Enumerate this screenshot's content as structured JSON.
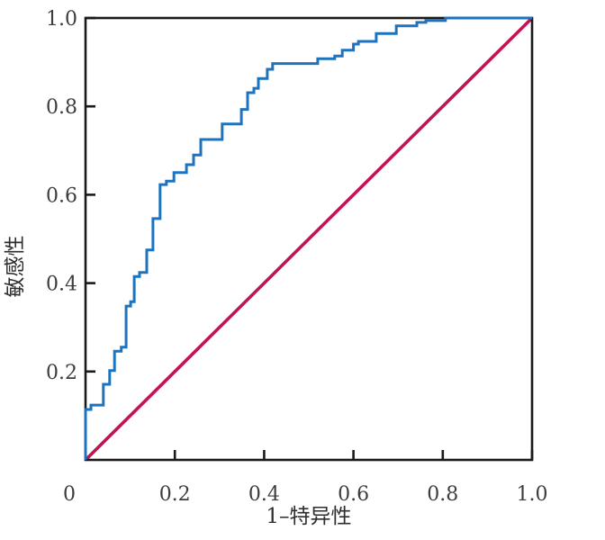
{
  "figure": {
    "background": "#ffffff",
    "axis_color": "#1a1a1a",
    "text_color": "#3d3d3d"
  },
  "chart_data": {
    "type": "line",
    "subtype": "roc-curve",
    "title": "",
    "xlabel": "1–特异性",
    "ylabel": "敏感性",
    "xlim": [
      0,
      1
    ],
    "ylim": [
      0,
      1
    ],
    "grid": false,
    "legend_position": "none",
    "x_axis": {
      "ticks": [
        {
          "label": "0",
          "value": 0,
          "dx": -18
        },
        {
          "label": "0.2",
          "value": 0.2,
          "dx": 0
        },
        {
          "label": "0.4",
          "value": 0.4,
          "dx": 0
        },
        {
          "label": "0.6",
          "value": 0.6,
          "dx": 0
        },
        {
          "label": "0.8",
          "value": 0.8,
          "dx": 0
        },
        {
          "label": "1.0",
          "value": 1,
          "dx": 0
        }
      ]
    },
    "y_axis": {
      "ticks": [
        {
          "label": "0.2",
          "value": 0.2
        },
        {
          "label": "0.4",
          "value": 0.4
        },
        {
          "label": "0.6",
          "value": 0.6
        },
        {
          "label": "0.8",
          "value": 0.8
        },
        {
          "label": "1.0",
          "value": 1
        }
      ]
    },
    "series": [
      {
        "name": "ROC curve",
        "kind": "step",
        "color": "#1d73bd",
        "stroke_width": 3,
        "points": [
          [
            0,
            0
          ],
          [
            0,
            0.114
          ],
          [
            0.012,
            0.114
          ],
          [
            0.012,
            0.124
          ],
          [
            0.04,
            0.124
          ],
          [
            0.04,
            0.171
          ],
          [
            0.054,
            0.171
          ],
          [
            0.054,
            0.202
          ],
          [
            0.065,
            0.202
          ],
          [
            0.065,
            0.246
          ],
          [
            0.08,
            0.246
          ],
          [
            0.08,
            0.255
          ],
          [
            0.091,
            0.255
          ],
          [
            0.091,
            0.348
          ],
          [
            0.101,
            0.348
          ],
          [
            0.101,
            0.358
          ],
          [
            0.109,
            0.358
          ],
          [
            0.109,
            0.415
          ],
          [
            0.121,
            0.415
          ],
          [
            0.121,
            0.424
          ],
          [
            0.137,
            0.424
          ],
          [
            0.137,
            0.475
          ],
          [
            0.151,
            0.475
          ],
          [
            0.151,
            0.546
          ],
          [
            0.167,
            0.546
          ],
          [
            0.167,
            0.623
          ],
          [
            0.181,
            0.623
          ],
          [
            0.181,
            0.631
          ],
          [
            0.198,
            0.631
          ],
          [
            0.198,
            0.65
          ],
          [
            0.226,
            0.65
          ],
          [
            0.226,
            0.668
          ],
          [
            0.242,
            0.668
          ],
          [
            0.242,
            0.69
          ],
          [
            0.258,
            0.69
          ],
          [
            0.258,
            0.725
          ],
          [
            0.306,
            0.725
          ],
          [
            0.306,
            0.76
          ],
          [
            0.349,
            0.76
          ],
          [
            0.349,
            0.793
          ],
          [
            0.363,
            0.793
          ],
          [
            0.363,
            0.831
          ],
          [
            0.377,
            0.831
          ],
          [
            0.377,
            0.841
          ],
          [
            0.387,
            0.841
          ],
          [
            0.387,
            0.863
          ],
          [
            0.407,
            0.863
          ],
          [
            0.407,
            0.884
          ],
          [
            0.419,
            0.884
          ],
          [
            0.419,
            0.897
          ],
          [
            0.52,
            0.897
          ],
          [
            0.52,
            0.908
          ],
          [
            0.558,
            0.908
          ],
          [
            0.558,
            0.914
          ],
          [
            0.575,
            0.914
          ],
          [
            0.575,
            0.927
          ],
          [
            0.6,
            0.927
          ],
          [
            0.6,
            0.941
          ],
          [
            0.611,
            0.941
          ],
          [
            0.611,
            0.947
          ],
          [
            0.651,
            0.947
          ],
          [
            0.651,
            0.965
          ],
          [
            0.696,
            0.965
          ],
          [
            0.696,
            0.982
          ],
          [
            0.742,
            0.982
          ],
          [
            0.742,
            0.99
          ],
          [
            0.762,
            0.99
          ],
          [
            0.762,
            0.994
          ],
          [
            0.806,
            0.994
          ],
          [
            0.806,
            1
          ],
          [
            1,
            1
          ]
        ]
      },
      {
        "name": "Reference diagonal",
        "kind": "line",
        "color": "#c31357",
        "stroke_width": 3.6,
        "points": [
          [
            0,
            0
          ],
          [
            1,
            1
          ]
        ]
      }
    ]
  }
}
